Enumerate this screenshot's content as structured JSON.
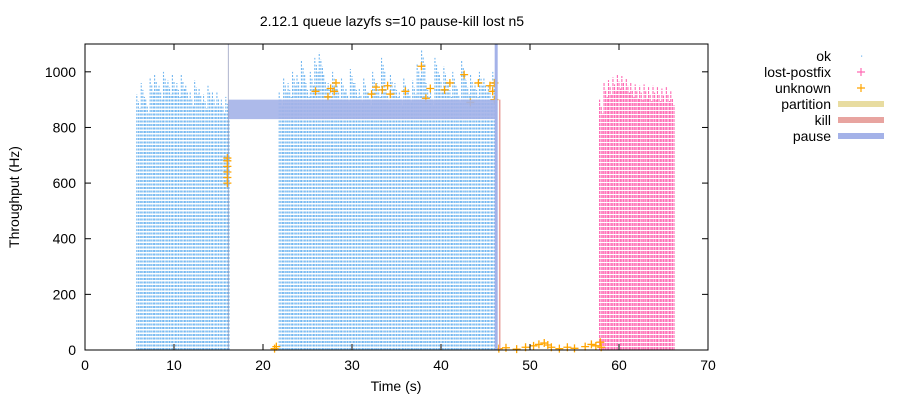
{
  "chart_data": {
    "type": "scatter",
    "title": "2.12.1 queue lazyfs s=10 pause-kill lost n5",
    "xlabel": "Time (s)",
    "ylabel": "Throughput (Hz)",
    "xlim": [
      0,
      70
    ],
    "ylim": [
      0,
      1100
    ],
    "xticks": [
      "0",
      "10",
      "20",
      "30",
      "40",
      "50",
      "60",
      "70"
    ],
    "yticks": [
      "0",
      "200",
      "400",
      "600",
      "800",
      "1000"
    ],
    "grid": false,
    "legend_position": "outside-right",
    "legend": [
      "ok",
      "lost-postfix",
      "unknown",
      "partition",
      "kill",
      "pause"
    ],
    "colors": {
      "ok": "#73b7f0",
      "lost-postfix": "#ff6ab4",
      "unknown": "#ffa500",
      "partition": "#e8dca0",
      "kill": "#e8a4a0",
      "pause": "#a4b2e8"
    },
    "series": [
      {
        "name": "ok",
        "marker": "dot",
        "columns": {
          "x": [
            6,
            6.5,
            7,
            7.5,
            8,
            8.5,
            9,
            9.5,
            10,
            10.5,
            11,
            11.5,
            12,
            12.5,
            13,
            13.5,
            14,
            14.5,
            15,
            15.5,
            16,
            22,
            22.5,
            23,
            23.5,
            24,
            24.5,
            25,
            25.5,
            26,
            26.5,
            27,
            27.5,
            28,
            28.5,
            29,
            29.5,
            30,
            30.5,
            31,
            31.5,
            32,
            32.5,
            33,
            33.5,
            34,
            34.5,
            35,
            35.5,
            36,
            36.5,
            37,
            37.5,
            38,
            38.5,
            39,
            39.5,
            40,
            40.5,
            41,
            41.5,
            42,
            42.5,
            43,
            43.5,
            44,
            44.5,
            45,
            45.5,
            46
          ],
          "y_max": [
            920,
            960,
            900,
            980,
            990,
            950,
            1000,
            970,
            990,
            960,
            990,
            950,
            930,
            970,
            940,
            920,
            950,
            930,
            930,
            900,
            910,
            930,
            980,
            960,
            1000,
            990,
            1040,
            960,
            1000,
            1050,
            1070,
            990,
            960,
            1000,
            950,
            980,
            940,
            1010,
            960,
            940,
            980,
            930,
            1000,
            960,
            1050,
            940,
            990,
            960,
            930,
            980,
            940,
            970,
            1030,
            1080,
            960,
            930,
            1050,
            990,
            1020,
            960,
            1000,
            940,
            1040,
            970,
            990,
            960,
            1000,
            980,
            950,
            1000
          ]
        }
      },
      {
        "name": "lost-postfix",
        "marker": "plus",
        "columns": {
          "x": [
            58,
            58.5,
            59,
            59.5,
            60,
            60.5,
            61,
            61.5,
            62,
            62.5,
            63,
            63.5,
            64,
            64.5,
            65,
            65.5,
            66
          ],
          "y_max": [
            900,
            960,
            970,
            980,
            990,
            985,
            975,
            960,
            955,
            950,
            955,
            945,
            950,
            945,
            940,
            945,
            930
          ]
        }
      },
      {
        "name": "unknown",
        "marker": "plus",
        "points": [
          [
            16,
            600
          ],
          [
            16,
            620
          ],
          [
            16,
            640
          ],
          [
            16,
            660
          ],
          [
            16,
            680
          ],
          [
            16,
            690
          ],
          [
            21.3,
            5
          ],
          [
            21.5,
            12
          ],
          [
            25.9,
            930
          ],
          [
            27.3,
            910
          ],
          [
            27.6,
            940
          ],
          [
            28,
            930
          ],
          [
            28.2,
            960
          ],
          [
            32.2,
            920
          ],
          [
            32.7,
            945
          ],
          [
            33.4,
            935
          ],
          [
            34,
            950
          ],
          [
            34.3,
            920
          ],
          [
            36,
            930
          ],
          [
            37.8,
            1020
          ],
          [
            38.3,
            905
          ],
          [
            38.8,
            940
          ],
          [
            40.4,
            935
          ],
          [
            41,
            960
          ],
          [
            42.6,
            990
          ],
          [
            43.3,
            890
          ],
          [
            44.2,
            960
          ],
          [
            45.5,
            950
          ],
          [
            45.8,
            930
          ],
          [
            46,
            960
          ],
          [
            46,
            900
          ],
          [
            46.5,
            5
          ],
          [
            47.3,
            8
          ],
          [
            48.5,
            3
          ],
          [
            49.5,
            10
          ],
          [
            50.4,
            15
          ],
          [
            51,
            20
          ],
          [
            51.6,
            25
          ],
          [
            52,
            18
          ],
          [
            52.4,
            10
          ],
          [
            53.3,
            5
          ],
          [
            54.2,
            10
          ],
          [
            55,
            6
          ],
          [
            56.2,
            12
          ],
          [
            56.9,
            20
          ],
          [
            57.4,
            15
          ],
          [
            57.9,
            28
          ],
          [
            58,
            10
          ]
        ]
      }
    ],
    "nemesis": [
      {
        "name": "pause",
        "start": 16.1,
        "end": 46.1
      }
    ],
    "markers": [
      {
        "name": "pause",
        "x": 46.2
      },
      {
        "name": "kill",
        "x": 46.6
      }
    ]
  }
}
